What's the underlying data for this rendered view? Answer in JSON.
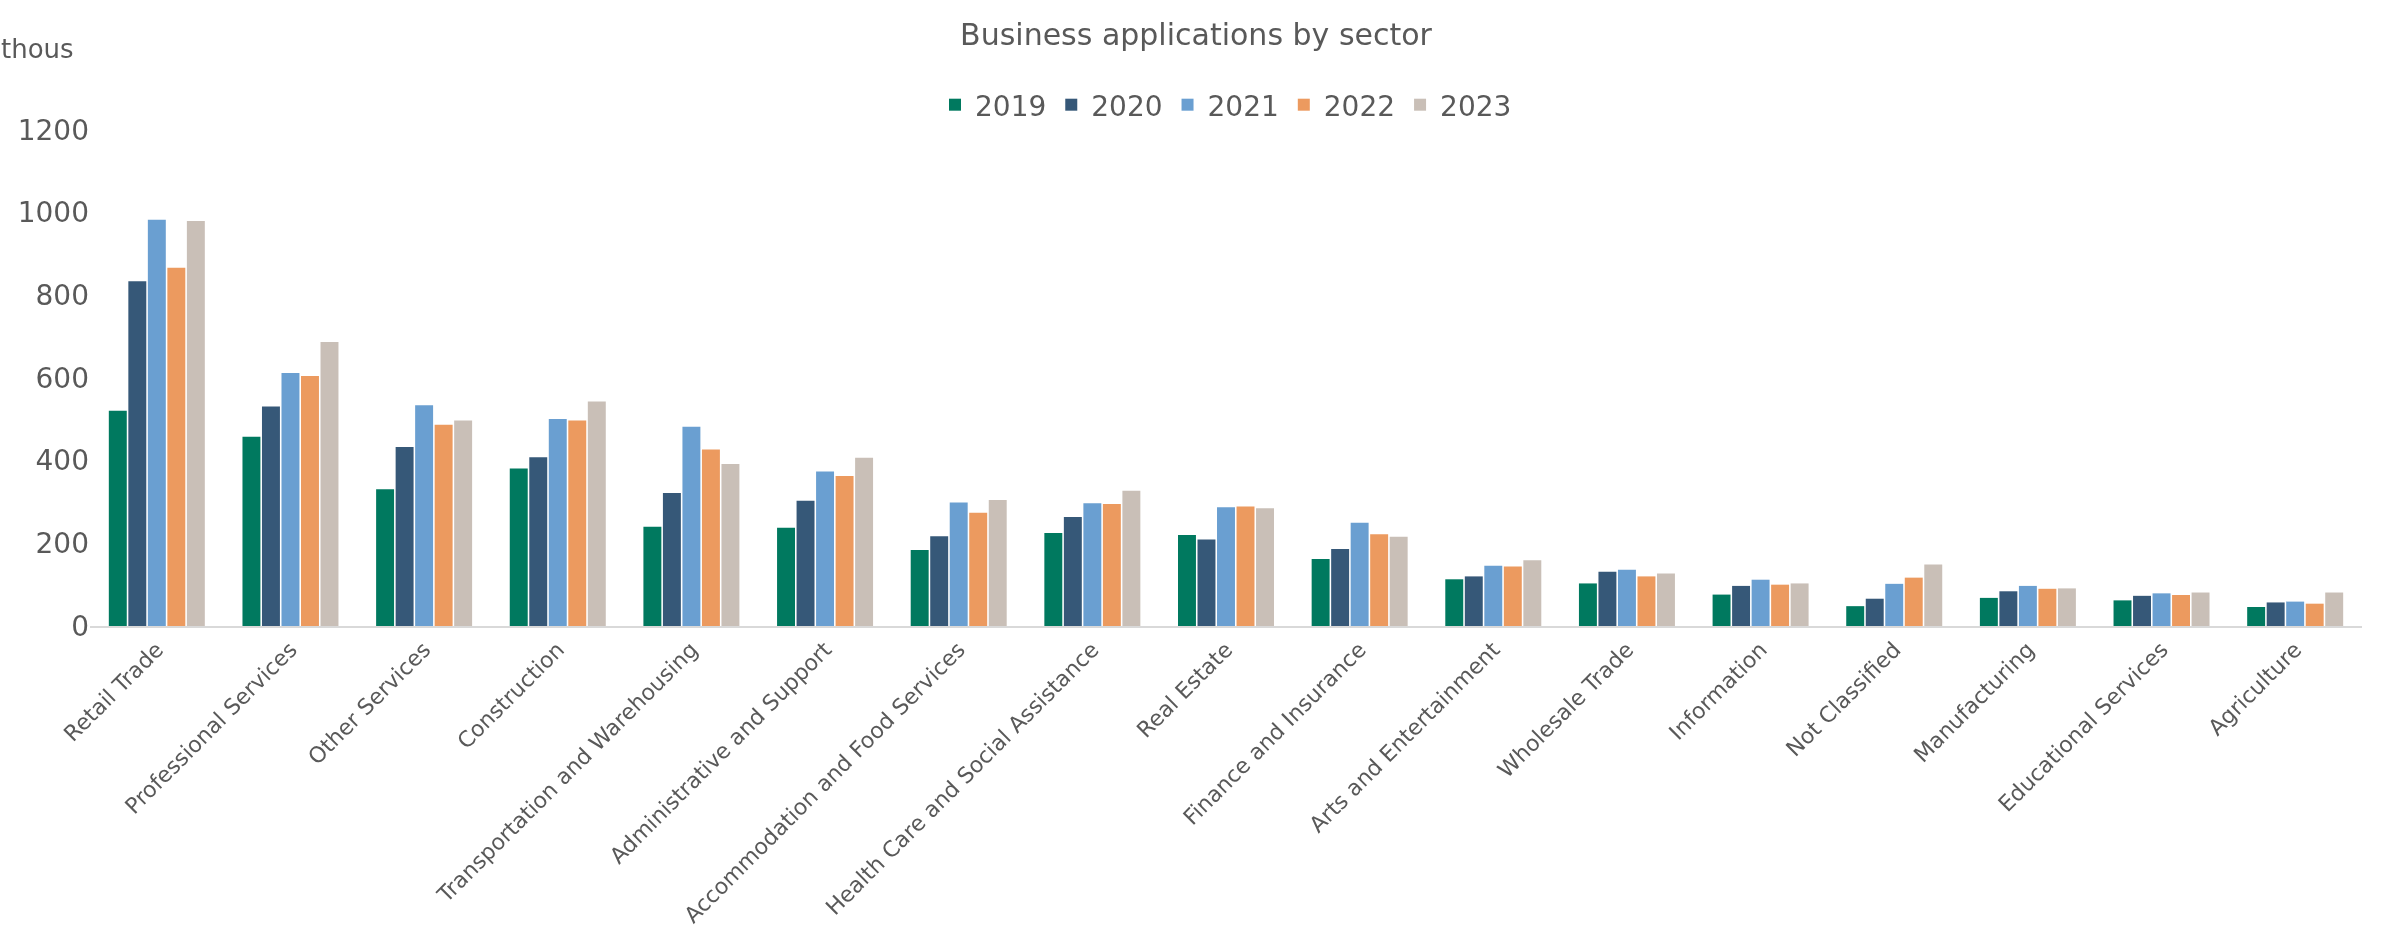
{
  "chart_data": {
    "type": "bar",
    "title": "Business applications by sector",
    "ylabel": "thous",
    "categories": [
      "Retail Trade",
      "Professional Services",
      "Other Services",
      "Construction",
      "Transportation and Warehousing",
      "Administrative and Support",
      "Accommodation and Food Services",
      "Health Care and Social Assistance",
      "Real Estate",
      "Finance and Insurance",
      "Arts and Entertainment",
      "Wholesale Trade",
      "Information",
      "Not Classified",
      "Manufacturing",
      "Educational Services",
      "Agriculture"
    ],
    "series": [
      {
        "name": "2019",
        "color": "#00795f",
        "values": [
          521,
          458,
          331,
          381,
          240,
          238,
          184,
          225,
          220,
          162,
          113,
          103,
          76,
          48,
          68,
          62,
          46
        ]
      },
      {
        "name": "2020",
        "color": "#365878",
        "values": [
          834,
          531,
          433,
          408,
          322,
          303,
          217,
          264,
          209,
          186,
          120,
          131,
          97,
          66,
          84,
          73,
          57
        ]
      },
      {
        "name": "2021",
        "color": "#6a9fd1",
        "values": [
          983,
          612,
          534,
          501,
          482,
          374,
          299,
          297,
          287,
          250,
          146,
          136,
          112,
          102,
          97,
          79,
          59
        ]
      },
      {
        "name": "2022",
        "color": "#ec9a5f",
        "values": [
          867,
          605,
          487,
          497,
          427,
          363,
          274,
          295,
          289,
          222,
          144,
          120,
          100,
          117,
          90,
          75,
          54
        ]
      },
      {
        "name": "2023",
        "color": "#c9bfb7",
        "values": [
          980,
          687,
          497,
          543,
          392,
          407,
          305,
          327,
          285,
          216,
          159,
          127,
          103,
          149,
          91,
          81,
          81
        ]
      }
    ],
    "ylim": [
      0,
      1200
    ],
    "yticks": [
      0,
      200,
      400,
      600,
      800,
      1000,
      1200
    ],
    "grid": false,
    "legend": "top"
  }
}
